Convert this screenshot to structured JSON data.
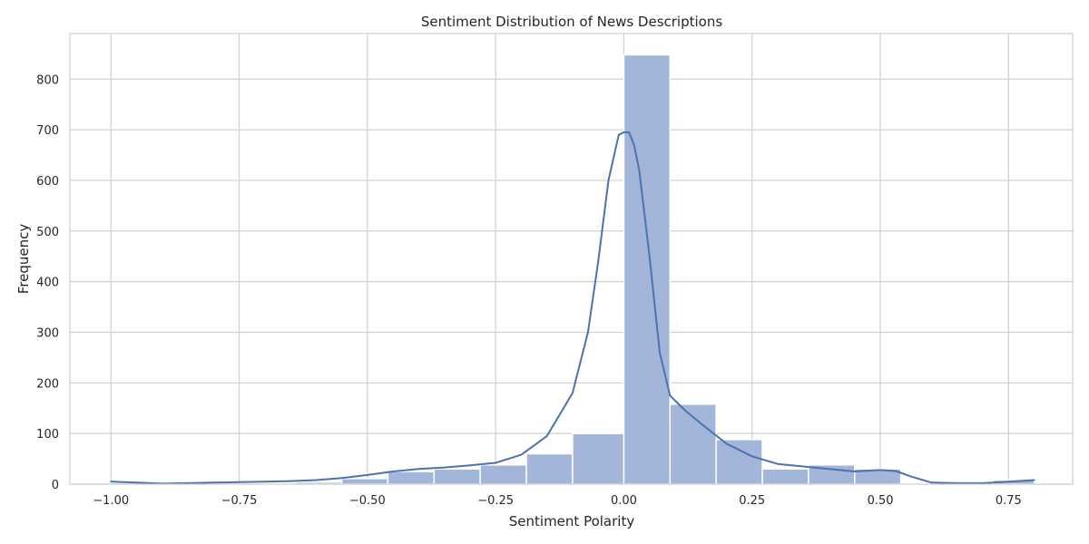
{
  "chart_data": {
    "type": "bar",
    "title": "Sentiment Distribution of News Descriptions",
    "xlabel": "Sentiment Polarity",
    "ylabel": "Frequency",
    "xlim": [
      -1.08,
      0.875
    ],
    "ylim": [
      0,
      890
    ],
    "xticks": [
      -1.0,
      -0.75,
      -0.5,
      -0.25,
      0.0,
      0.25,
      0.5,
      0.75
    ],
    "xtick_labels": [
      "−1.00",
      "−0.75",
      "−0.50",
      "−0.25",
      "0.00",
      "0.25",
      "0.50",
      "0.75"
    ],
    "yticks": [
      0,
      100,
      200,
      300,
      400,
      500,
      600,
      700,
      800
    ],
    "ytick_labels": [
      "0",
      "100",
      "200",
      "300",
      "400",
      "500",
      "600",
      "700",
      "800"
    ],
    "grid": true,
    "bar_color": "#a3b6d9",
    "line_color": "#4c72b0",
    "bins": [
      {
        "x0": -1.0,
        "x1": -0.91,
        "value": 3
      },
      {
        "x0": -0.91,
        "x1": -0.82,
        "value": 1
      },
      {
        "x0": -0.82,
        "x1": -0.73,
        "value": 2
      },
      {
        "x0": -0.73,
        "x1": -0.64,
        "value": 2
      },
      {
        "x0": -0.64,
        "x1": -0.55,
        "value": 4
      },
      {
        "x0": -0.55,
        "x1": -0.46,
        "value": 11
      },
      {
        "x0": -0.46,
        "x1": -0.37,
        "value": 25
      },
      {
        "x0": -0.37,
        "x1": -0.28,
        "value": 30
      },
      {
        "x0": -0.28,
        "x1": -0.19,
        "value": 38
      },
      {
        "x0": -0.19,
        "x1": -0.1,
        "value": 60
      },
      {
        "x0": -0.1,
        "x1": 0.0,
        "value": 100
      },
      {
        "x0": 0.0,
        "x1": 0.09,
        "value": 848
      },
      {
        "x0": 0.09,
        "x1": 0.18,
        "value": 158
      },
      {
        "x0": 0.18,
        "x1": 0.27,
        "value": 88
      },
      {
        "x0": 0.27,
        "x1": 0.36,
        "value": 30
      },
      {
        "x0": 0.36,
        "x1": 0.45,
        "value": 38
      },
      {
        "x0": 0.45,
        "x1": 0.54,
        "value": 30
      },
      {
        "x0": 0.54,
        "x1": 0.63,
        "value": 2
      },
      {
        "x0": 0.63,
        "x1": 0.72,
        "value": 1
      },
      {
        "x0": 0.72,
        "x1": 0.8,
        "value": 8
      }
    ],
    "kde": {
      "x": [
        -1.0,
        -0.95,
        -0.9,
        -0.85,
        -0.8,
        -0.75,
        -0.7,
        -0.65,
        -0.6,
        -0.55,
        -0.5,
        -0.45,
        -0.4,
        -0.35,
        -0.3,
        -0.25,
        -0.2,
        -0.15,
        -0.1,
        -0.07,
        -0.05,
        -0.03,
        -0.01,
        0.0,
        0.01,
        0.02,
        0.03,
        0.05,
        0.07,
        0.09,
        0.12,
        0.15,
        0.2,
        0.25,
        0.3,
        0.35,
        0.4,
        0.45,
        0.5,
        0.53,
        0.56,
        0.6,
        0.65,
        0.7,
        0.75,
        0.8
      ],
      "y": [
        5,
        3,
        1,
        2,
        3,
        4,
        5,
        6,
        8,
        12,
        18,
        25,
        30,
        33,
        37,
        42,
        58,
        95,
        180,
        300,
        440,
        600,
        690,
        695,
        695,
        670,
        620,
        450,
        260,
        175,
        145,
        120,
        80,
        55,
        40,
        35,
        30,
        25,
        28,
        26,
        15,
        3,
        2,
        2,
        5,
        8
      ]
    }
  }
}
